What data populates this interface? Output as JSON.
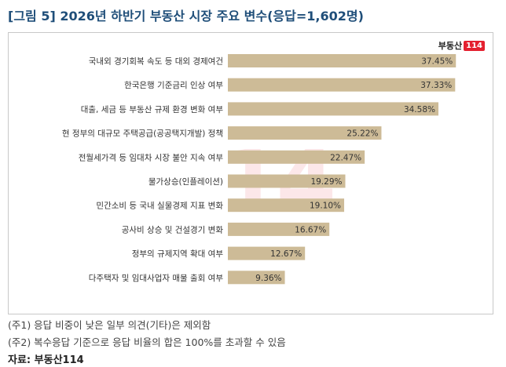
{
  "title": "[그림 5] 2026년 하반기 부동산 시장 주요 변수(응답=1,602명)",
  "logo": {
    "text": "부동산",
    "badge": "114"
  },
  "watermark": "14",
  "chart_data": {
    "type": "bar",
    "orientation": "horizontal",
    "categories": [
      "국내외 경기회복 속도 등 대외 경제여건",
      "한국은행 기준금리 인상 여부",
      "대출, 세금 등 부동산 규제 환경 변화 여부",
      "현 정부의 대규모 주택공급(공공택지개발) 정책",
      "전월세가격 등 임대차 시장 불안 지속 여부",
      "물가상승(인플레이션)",
      "민간소비 등 국내 실물경제 지표 변화",
      "공사비 상승 및 건설경기 변화",
      "정부의 규제지역 확대 여부",
      "다주택자 및 임대사업자 매물 출회 여부"
    ],
    "values": [
      37.45,
      37.33,
      34.58,
      25.22,
      22.47,
      19.29,
      19.1,
      16.67,
      12.67,
      9.36
    ],
    "labels": [
      "37.45%",
      "37.33%",
      "34.58%",
      "25.22%",
      "22.47%",
      "19.29%",
      "19.10%",
      "16.67%",
      "12.67%",
      "9.36%"
    ],
    "bar_color": "#cdbb97",
    "xlim": [
      0,
      40
    ],
    "grid": false,
    "legend": "none"
  },
  "notes": [
    "(주1) 응답 비중이 낮은 일부 의견(기타)은 제외함",
    "(주2) 복수응답 기준으로 응답 비율의 합은 100%를 초과할 수 있음"
  ],
  "source": "자료: 부동산114"
}
